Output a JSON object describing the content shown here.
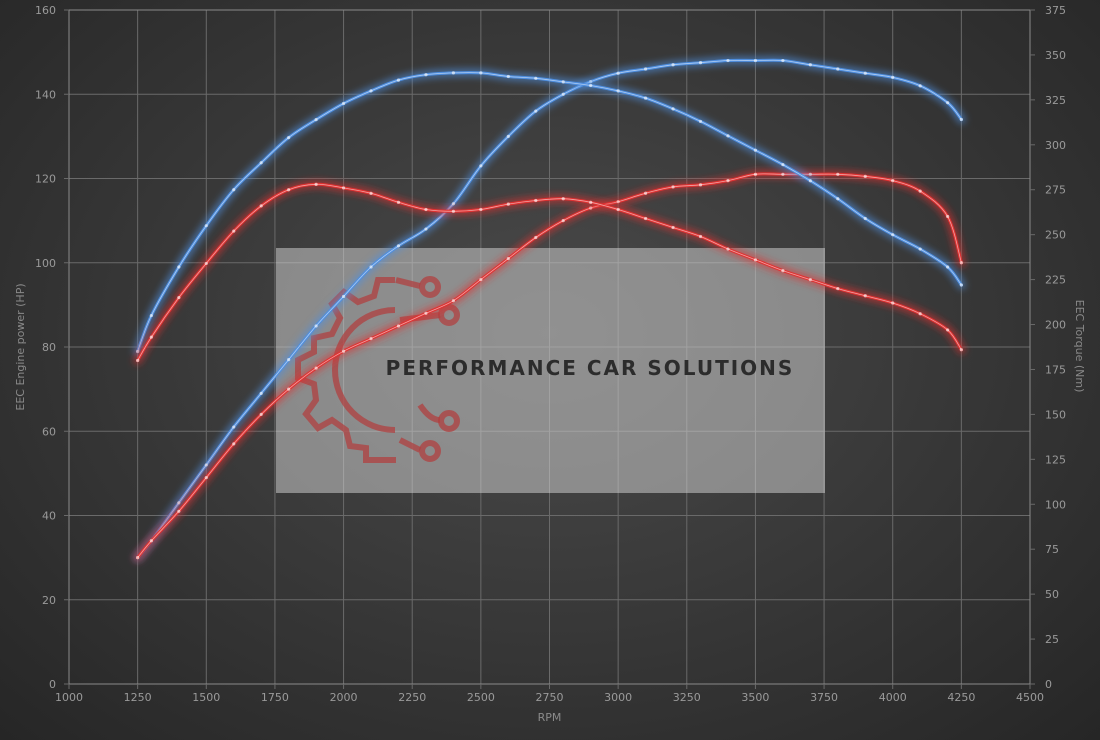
{
  "chart_data": {
    "type": "line",
    "title": "",
    "xlabel": "RPM",
    "ylabel": "EEC Engine power (HP)",
    "y2label": "EEC Torque (Nm)",
    "xlim": [
      1000,
      4500
    ],
    "ylim": [
      0,
      160
    ],
    "y2lim": [
      0,
      375
    ],
    "x_ticks": [
      1000,
      1250,
      1500,
      1750,
      2000,
      2250,
      2500,
      2750,
      3000,
      3250,
      3500,
      3750,
      4000,
      4250,
      4500
    ],
    "y_ticks": [
      0,
      20,
      40,
      60,
      80,
      100,
      120,
      140,
      160
    ],
    "y2_ticks": [
      0,
      25,
      50,
      75,
      100,
      125,
      150,
      175,
      200,
      225,
      250,
      275,
      300,
      325,
      350,
      375
    ],
    "grid": true,
    "legend": "none",
    "series": [
      {
        "axis": "left",
        "color": "#4f8fe0",
        "x": [
          1250,
          1300,
          1400,
          1500,
          1600,
          1700,
          1800,
          1900,
          2000,
          2100,
          2200,
          2300,
          2400,
          2500,
          2600,
          2700,
          2800,
          2900,
          3000,
          3100,
          3200,
          3300,
          3400,
          3500,
          3600,
          3700,
          3800,
          3900,
          4000,
          4100,
          4200,
          4250
        ],
        "y": [
          30,
          34,
          43,
          52,
          61,
          69,
          77,
          85,
          92,
          99,
          104,
          108,
          114,
          123,
          130,
          136,
          140,
          143,
          145,
          146,
          147,
          147.5,
          148,
          148,
          148,
          147,
          146,
          145,
          144,
          142,
          138,
          134
        ]
      },
      {
        "axis": "left",
        "color": "#e03232",
        "x": [
          1250,
          1300,
          1400,
          1500,
          1600,
          1700,
          1800,
          1900,
          2000,
          2100,
          2200,
          2300,
          2400,
          2500,
          2600,
          2700,
          2800,
          2900,
          3000,
          3100,
          3200,
          3300,
          3400,
          3500,
          3600,
          3700,
          3800,
          3900,
          4000,
          4100,
          4200,
          4250
        ],
        "y": [
          30,
          34,
          41,
          49,
          57,
          64,
          70,
          75,
          79,
          82,
          85,
          88,
          91,
          96,
          101,
          106,
          110,
          113,
          114.5,
          116.5,
          118,
          118.5,
          119.5,
          121,
          121,
          121,
          121,
          120.5,
          119.5,
          117,
          111,
          100
        ]
      },
      {
        "axis": "right",
        "color": "#4f8fe0",
        "x": [
          1250,
          1300,
          1400,
          1500,
          1600,
          1700,
          1800,
          1900,
          2000,
          2100,
          2200,
          2300,
          2400,
          2500,
          2600,
          2700,
          2800,
          2900,
          3000,
          3100,
          3200,
          3300,
          3400,
          3500,
          3600,
          3700,
          3800,
          3900,
          4000,
          4100,
          4200,
          4250
        ],
        "y": [
          185,
          205,
          232,
          255,
          275,
          290,
          304,
          314,
          323,
          330,
          336,
          339,
          340,
          340,
          338,
          337,
          335,
          333,
          330,
          326,
          320,
          313,
          305,
          297,
          289,
          280,
          270,
          259,
          250,
          242,
          232,
          222
        ]
      },
      {
        "axis": "right",
        "color": "#e03232",
        "x": [
          1250,
          1300,
          1400,
          1500,
          1600,
          1700,
          1800,
          1900,
          2000,
          2100,
          2200,
          2300,
          2400,
          2500,
          2600,
          2700,
          2800,
          2900,
          3000,
          3100,
          3200,
          3300,
          3400,
          3500,
          3600,
          3700,
          3800,
          3900,
          4000,
          4100,
          4200,
          4250
        ],
        "y": [
          180,
          193,
          215,
          234,
          252,
          266,
          275,
          278,
          276,
          273,
          268,
          264,
          263,
          264,
          267,
          269,
          270,
          268,
          264,
          259,
          254,
          249,
          242,
          236,
          230,
          225,
          220,
          216,
          212,
          206,
          197,
          186
        ]
      }
    ]
  },
  "watermark": {
    "text": "PERFORMANCE CAR SOLUTIONS",
    "logo": "gear-circuit-logo"
  }
}
